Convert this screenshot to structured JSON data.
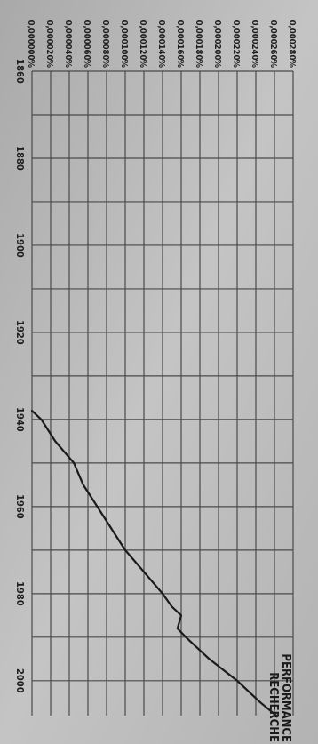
{
  "chart_data": {
    "type": "line",
    "orientation": "rotated-90-cw",
    "title": "PERFORMANCE\nRECHERCHE",
    "xlabel": "",
    "ylabel": "",
    "x_ticks": [
      "1860",
      "1880",
      "1900",
      "1920",
      "1940",
      "1960",
      "1980",
      "2000"
    ],
    "y_ticks": [
      "0,000000%",
      "0,000020%",
      "0,000040%",
      "0,000060%",
      "0,000080%",
      "0,000100%",
      "0,000120%",
      "0,000140%",
      "0,000160%",
      "0,000180%",
      "0,000200%",
      "0,000220%",
      "0,000240%",
      "0,000260%",
      "0,000280%"
    ],
    "xlim": [
      1860,
      2008
    ],
    "ylim": [
      0,
      0.00028
    ],
    "grid": true,
    "series": [
      {
        "color": "#1a1a1a",
        "x": [
          1938,
          1940,
          1945,
          1950,
          1955,
          1960,
          1965,
          1970,
          1975,
          1980,
          1983,
          1985,
          1988,
          1990,
          1995,
          2000,
          2005,
          2008
        ],
        "y": [
          0.0,
          1e-05,
          2.5e-05,
          4.5e-05,
          5.5e-05,
          7e-05,
          8.5e-05,
          0.0001,
          0.00012,
          0.00014,
          0.00015,
          0.00016,
          0.000156,
          0.000165,
          0.00019,
          0.00022,
          0.000245,
          0.000262
        ]
      }
    ]
  }
}
